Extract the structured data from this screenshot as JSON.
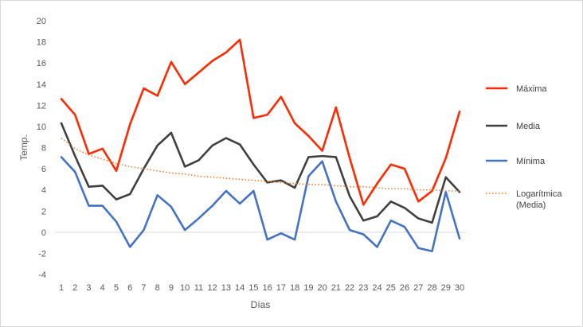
{
  "chart_data": {
    "type": "line",
    "title": "",
    "xlabel": "Días",
    "ylabel": "Temp.",
    "ylim": [
      -4,
      20
    ],
    "yticks": [
      -4,
      -2,
      0,
      2,
      4,
      6,
      8,
      10,
      12,
      14,
      16,
      18,
      20
    ],
    "grid": false,
    "legend_position": "right",
    "categories": [
      "1",
      "2",
      "3",
      "4",
      "5",
      "6",
      "7",
      "8",
      "9",
      "10",
      "11",
      "12",
      "13",
      "14",
      "15",
      "16",
      "17",
      "18",
      "19",
      "20",
      "21",
      "22",
      "23",
      "24",
      "25",
      "26",
      "27",
      "28",
      "29",
      "30"
    ],
    "series": [
      {
        "name": "Máxima",
        "color": "#ff2a00",
        "values": [
          12.6,
          11.1,
          7.4,
          7.9,
          5.8,
          10.2,
          13.6,
          12.9,
          16.1,
          14.0,
          15.1,
          16.2,
          17.0,
          18.2,
          10.8,
          11.1,
          12.8,
          10.3,
          9.1,
          7.7,
          11.8,
          7.0,
          2.6,
          4.6,
          6.4,
          6.0,
          2.9,
          3.9,
          7.0,
          11.4
        ]
      },
      {
        "name": "Media",
        "color": "#404040",
        "values": [
          10.3,
          7.2,
          4.3,
          4.4,
          3.1,
          3.6,
          6.0,
          8.2,
          9.4,
          6.2,
          6.8,
          8.2,
          8.9,
          8.3,
          6.4,
          4.7,
          4.9,
          4.2,
          7.1,
          7.2,
          7.1,
          3.4,
          1.1,
          1.5,
          2.9,
          2.3,
          1.3,
          0.9,
          5.2,
          3.8
        ]
      },
      {
        "name": "Mínima",
        "color": "#4472c4",
        "values": [
          7.1,
          5.7,
          2.5,
          2.5,
          1.0,
          -1.4,
          0.2,
          3.5,
          2.4,
          0.2,
          1.3,
          2.5,
          3.9,
          2.7,
          3.9,
          -0.7,
          -0.1,
          -0.7,
          5.3,
          6.7,
          2.9,
          0.2,
          -0.2,
          -1.4,
          1.1,
          0.5,
          -1.5,
          -1.8,
          3.8,
          -0.6
        ]
      }
    ],
    "trendline": {
      "name": "Logarítmica (Media)",
      "name_lines": [
        "Logarítmica",
        "(Media)"
      ],
      "color": "#ed7d31",
      "type": "logarithmic",
      "of_series": "Media",
      "values": [
        8.9,
        7.9,
        7.3,
        6.9,
        6.5,
        6.2,
        6.0,
        5.8,
        5.6,
        5.5,
        5.3,
        5.2,
        5.1,
        5.0,
        4.9,
        4.8,
        4.7,
        4.6,
        4.5,
        4.5,
        4.4,
        4.3,
        4.3,
        4.2,
        4.1,
        4.1,
        4.0,
        4.0,
        3.9,
        3.9
      ]
    }
  }
}
